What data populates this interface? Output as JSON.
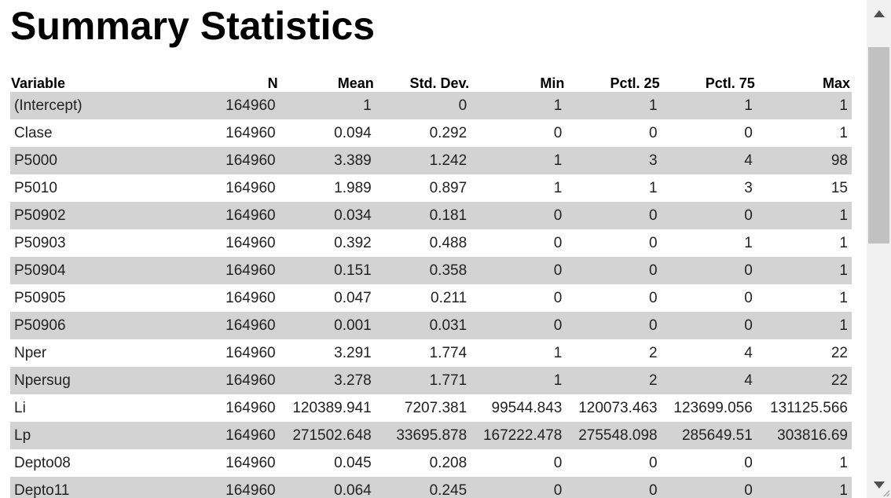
{
  "page": {
    "title": "Summary Statistics"
  },
  "table": {
    "headers": [
      "Variable",
      "N",
      "Mean",
      "Std. Dev.",
      "Min",
      "Pctl. 25",
      "Pctl. 75",
      "Max"
    ],
    "rows": [
      [
        "(Intercept)",
        "164960",
        "1",
        "0",
        "1",
        "1",
        "1",
        "1"
      ],
      [
        "Clase",
        "164960",
        "0.094",
        "0.292",
        "0",
        "0",
        "0",
        "1"
      ],
      [
        "P5000",
        "164960",
        "3.389",
        "1.242",
        "1",
        "3",
        "4",
        "98"
      ],
      [
        "P5010",
        "164960",
        "1.989",
        "0.897",
        "1",
        "1",
        "3",
        "15"
      ],
      [
        "P50902",
        "164960",
        "0.034",
        "0.181",
        "0",
        "0",
        "0",
        "1"
      ],
      [
        "P50903",
        "164960",
        "0.392",
        "0.488",
        "0",
        "0",
        "1",
        "1"
      ],
      [
        "P50904",
        "164960",
        "0.151",
        "0.358",
        "0",
        "0",
        "0",
        "1"
      ],
      [
        "P50905",
        "164960",
        "0.047",
        "0.211",
        "0",
        "0",
        "0",
        "1"
      ],
      [
        "P50906",
        "164960",
        "0.001",
        "0.031",
        "0",
        "0",
        "0",
        "1"
      ],
      [
        "Nper",
        "164960",
        "3.291",
        "1.774",
        "1",
        "2",
        "4",
        "22"
      ],
      [
        "Npersug",
        "164960",
        "3.278",
        "1.771",
        "1",
        "2",
        "4",
        "22"
      ],
      [
        "Li",
        "164960",
        "120389.941",
        "7207.381",
        "99544.843",
        "120073.463",
        "123699.056",
        "131125.566"
      ],
      [
        "Lp",
        "164960",
        "271502.648",
        "33695.878",
        "167222.478",
        "275548.098",
        "285649.51",
        "303816.69"
      ],
      [
        "Depto08",
        "164960",
        "0.045",
        "0.208",
        "0",
        "0",
        "0",
        "1"
      ],
      [
        "Depto11",
        "164960",
        "0.064",
        "0.245",
        "0",
        "0",
        "0",
        "1"
      ]
    ]
  },
  "colors": {
    "shaded_row": "#d3d3d3",
    "scroll_track": "#f1f1f1",
    "scroll_thumb": "#c1c1c1"
  },
  "icons": {
    "scroll_up": "triangle-up-icon",
    "scroll_down": "triangle-down-icon",
    "resize": "resize-grip-icon"
  }
}
